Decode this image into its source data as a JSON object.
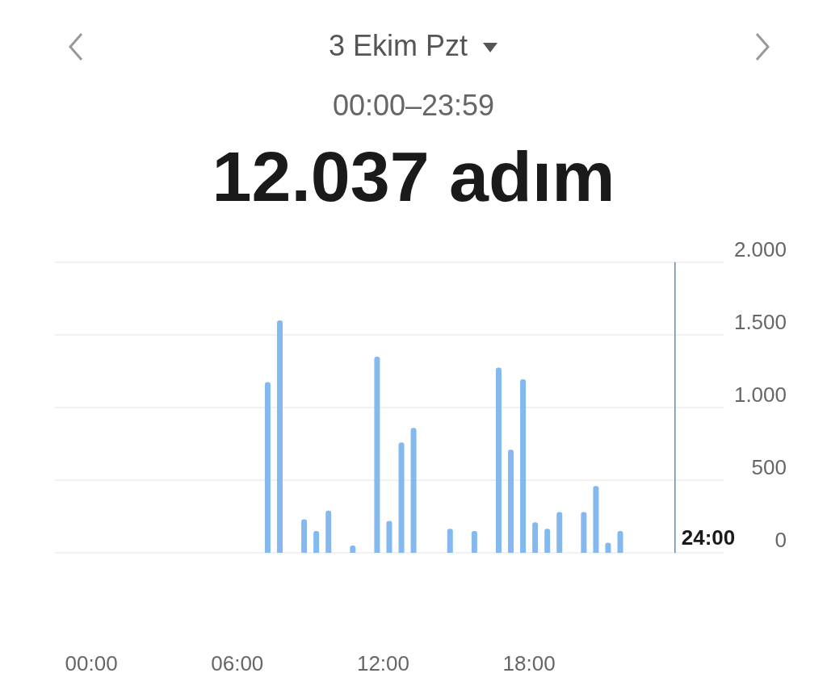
{
  "chart_data": {
    "type": "bar",
    "title": "3 Ekim Pzt",
    "subtitle": "00:00–23:59",
    "annotations": [
      "12.037 adım"
    ],
    "x": [
      7.25,
      7.75,
      8.75,
      9.25,
      9.75,
      10.75,
      11.75,
      12.25,
      12.75,
      13.25,
      14.75,
      15.75,
      16.75,
      17.25,
      17.75,
      18.25,
      18.75,
      19.25,
      20.25,
      20.75,
      21.25,
      21.75
    ],
    "values": [
      1175,
      1600,
      230,
      150,
      290,
      50,
      1350,
      220,
      760,
      860,
      165,
      150,
      1275,
      710,
      1195,
      210,
      165,
      280,
      280,
      460,
      70,
      150
    ],
    "color": "#84b9ef",
    "xlim": [
      -1.5,
      26
    ],
    "xticks": [
      {
        "value": 0,
        "label": "00:00"
      },
      {
        "value": 6,
        "label": "06:00"
      },
      {
        "value": 12,
        "label": "12:00"
      },
      {
        "value": 18,
        "label": "18:00"
      }
    ],
    "ylim": [
      0,
      2000
    ],
    "yticks": [
      {
        "value": 0,
        "label": "0"
      },
      {
        "value": 500,
        "label": "500"
      },
      {
        "value": 1000,
        "label": "1.000"
      },
      {
        "value": 1500,
        "label": "1.500"
      },
      {
        "value": 2000,
        "label": "2.000"
      }
    ],
    "grid": "y",
    "ref_lines": [
      {
        "axis": "x",
        "value": 24,
        "label": "24:00",
        "color": "#5b8fa8"
      }
    ]
  }
}
